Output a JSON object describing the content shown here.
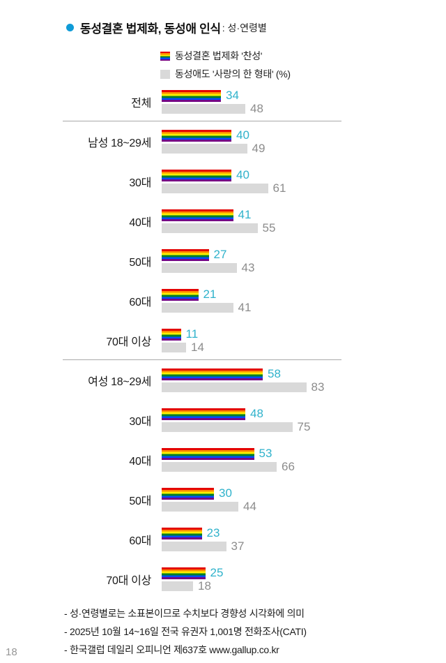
{
  "header": {
    "title": "동성결혼 법제화, 동성애 인식",
    "subtitle": ": 성·연령별"
  },
  "legend": {
    "series1": "동성결혼 법제화 '찬성'",
    "series2": "동성애도 '사랑의 한 형태' (%)"
  },
  "chart_data": {
    "type": "bar",
    "orientation": "horizontal",
    "unit": "%",
    "xlim": [
      0,
      100
    ],
    "categories": [
      "전체",
      "남성 18~29세",
      "30대",
      "40대",
      "50대",
      "60대",
      "70대 이상",
      "여성 18~29세",
      "30대",
      "40대",
      "50대",
      "60대",
      "70대 이상"
    ],
    "series": [
      {
        "name": "동성결혼 법제화 '찬성'",
        "style": "rainbow",
        "values": [
          34,
          40,
          40,
          41,
          27,
          21,
          11,
          58,
          48,
          53,
          30,
          23,
          25
        ]
      },
      {
        "name": "동성애도 '사랑의 한 형태' (%)",
        "style": "gray",
        "values": [
          48,
          49,
          61,
          55,
          43,
          41,
          14,
          83,
          75,
          66,
          44,
          37,
          18
        ]
      }
    ],
    "separators_after": [
      0,
      6
    ],
    "legend_position": "top"
  },
  "colors": {
    "accent_cyan": "#2fb2cb",
    "bar_gray": "#d9d9d9",
    "value_gray": "#8c8c8c",
    "bullet_blue": "#0f9bd7",
    "rainbow": [
      "#E40303",
      "#FF8C00",
      "#FFED00",
      "#008026",
      "#004DFF",
      "#750787"
    ]
  },
  "footer": {
    "notes": [
      "- 성·연령별로는 소표본이므로 수치보다 경향성 시각화에 의미",
      "- 2025년 10월 14~16일 전국 유권자 1,001명 전화조사(CATI)",
      "- 한국갤럽 데일리 오피니언 제637호 www.gallup.co.kr"
    ],
    "page_number": "18"
  }
}
